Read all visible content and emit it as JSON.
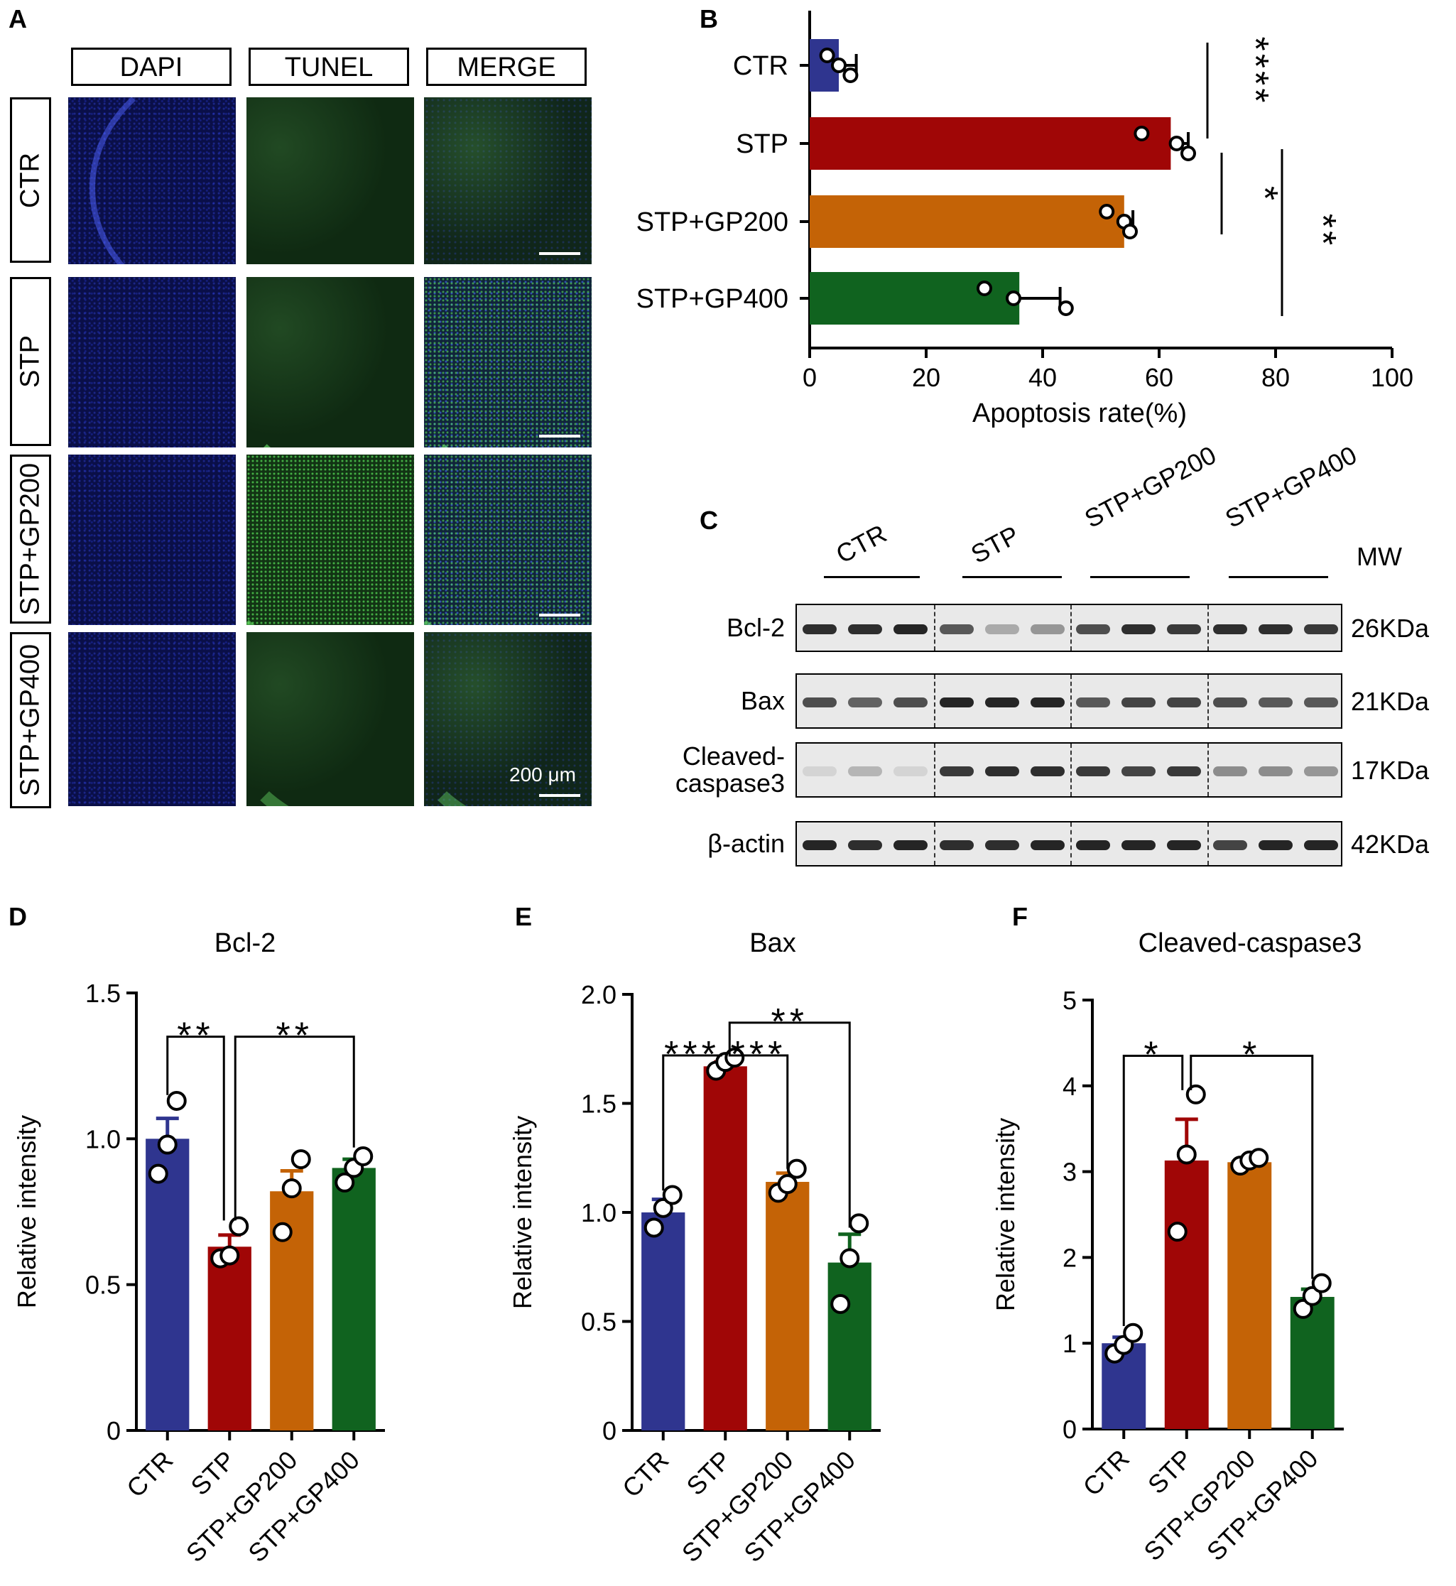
{
  "panels": {
    "A": "A",
    "B": "B",
    "C": "C",
    "D": "D",
    "E": "E",
    "F": "F"
  },
  "micrograph": {
    "columns": [
      "DAPI",
      "TUNEL",
      "MERGE"
    ],
    "rows": [
      "CTR",
      "STP",
      "STP+GP200",
      "STP+GP400"
    ],
    "scale_label": "200 μm"
  },
  "colors": {
    "CTR": "#2f358f",
    "STP": "#a00606",
    "STP+GP200": "#c46306",
    "STP+GP400": "#10631f"
  },
  "chart_data": [
    {
      "id": "B",
      "type": "bar",
      "orientation": "horizontal",
      "categories": [
        "CTR",
        "STP",
        "STP+GP200",
        "STP+GP400"
      ],
      "values": [
        5,
        62,
        54,
        36
      ],
      "errors": [
        3,
        3,
        1.5,
        7
      ],
      "points": [
        [
          3,
          5,
          7
        ],
        [
          57,
          63,
          65
        ],
        [
          51,
          54,
          55
        ],
        [
          30,
          35,
          44
        ]
      ],
      "xlabel": "Apoptosis rate(%)",
      "ylabel": "",
      "xlim": [
        0,
        100
      ],
      "xticks": [
        "0",
        "20",
        "40",
        "60",
        "80",
        "100"
      ],
      "annotations": [
        "****",
        "*",
        "**"
      ]
    },
    {
      "id": "D",
      "type": "bar",
      "title": "Bcl-2",
      "categories": [
        "CTR",
        "STP",
        "STP+GP200",
        "STP+GP400"
      ],
      "values": [
        1.0,
        0.63,
        0.82,
        0.9
      ],
      "errors": [
        0.07,
        0.04,
        0.07,
        0.03
      ],
      "points": [
        [
          0.88,
          0.98,
          1.13
        ],
        [
          0.59,
          0.6,
          0.7
        ],
        [
          0.68,
          0.83,
          0.93
        ],
        [
          0.85,
          0.9,
          0.94
        ]
      ],
      "ylabel": "Relative intensity",
      "ylim": [
        0,
        1.5
      ],
      "yticks": [
        "0",
        "0.5",
        "1.0",
        "1.5"
      ],
      "annotations": [
        "**",
        "**"
      ]
    },
    {
      "id": "E",
      "type": "bar",
      "title": "Bax",
      "categories": [
        "CTR",
        "STP",
        "STP+GP200",
        "STP+GP400"
      ],
      "values": [
        1.0,
        1.67,
        1.14,
        0.77
      ],
      "errors": [
        0.06,
        0.02,
        0.04,
        0.13
      ],
      "points": [
        [
          0.93,
          1.02,
          1.08
        ],
        [
          1.65,
          1.69,
          1.71
        ],
        [
          1.09,
          1.13,
          1.2
        ],
        [
          0.58,
          0.79,
          0.95
        ]
      ],
      "ylabel": "Relative intensity",
      "ylim": [
        0,
        2.0
      ],
      "yticks": [
        "0",
        "0.5",
        "1.0",
        "1.5",
        "2.0"
      ],
      "annotations": [
        "***",
        "***",
        "**"
      ]
    },
    {
      "id": "F",
      "type": "bar",
      "title": "Cleaved-caspase3",
      "categories": [
        "CTR",
        "STP",
        "STP+GP200",
        "STP+GP400"
      ],
      "values": [
        1.0,
        3.13,
        3.11,
        1.54
      ],
      "errors": [
        0.07,
        0.48,
        0.03,
        0.09
      ],
      "points": [
        [
          0.88,
          0.98,
          1.12
        ],
        [
          2.3,
          3.2,
          3.9
        ],
        [
          3.07,
          3.13,
          3.16
        ],
        [
          1.4,
          1.55,
          1.7
        ]
      ],
      "ylabel": "Relative intensity",
      "ylim": [
        0,
        5
      ],
      "yticks": [
        "0",
        "1",
        "2",
        "3",
        "4",
        "5"
      ],
      "annotations": [
        "*",
        "*"
      ]
    }
  ],
  "western": {
    "groups": [
      "CTR",
      "STP",
      "STP+GP200",
      "STP+GP400"
    ],
    "mw_header": "MW",
    "blots": [
      {
        "label": "Bcl-2",
        "mw": "26KDa"
      },
      {
        "label": "Bax",
        "mw": "21KDa"
      },
      {
        "label": "Cleaved-\ncaspase3",
        "mw": "17KDa"
      },
      {
        "label": "β-actin",
        "mw": "42KDa"
      }
    ],
    "intensity": [
      [
        0.9,
        0.9,
        0.95,
        0.7,
        0.3,
        0.4,
        0.75,
        0.9,
        0.85,
        0.9,
        0.9,
        0.85
      ],
      [
        0.75,
        0.65,
        0.75,
        0.95,
        0.95,
        0.95,
        0.7,
        0.8,
        0.8,
        0.75,
        0.7,
        0.7
      ],
      [
        0.1,
        0.25,
        0.1,
        0.85,
        0.9,
        0.9,
        0.85,
        0.8,
        0.85,
        0.45,
        0.45,
        0.4
      ],
      [
        0.95,
        0.9,
        0.95,
        0.9,
        0.9,
        0.95,
        0.95,
        0.95,
        0.95,
        0.8,
        0.95,
        0.95
      ]
    ]
  }
}
